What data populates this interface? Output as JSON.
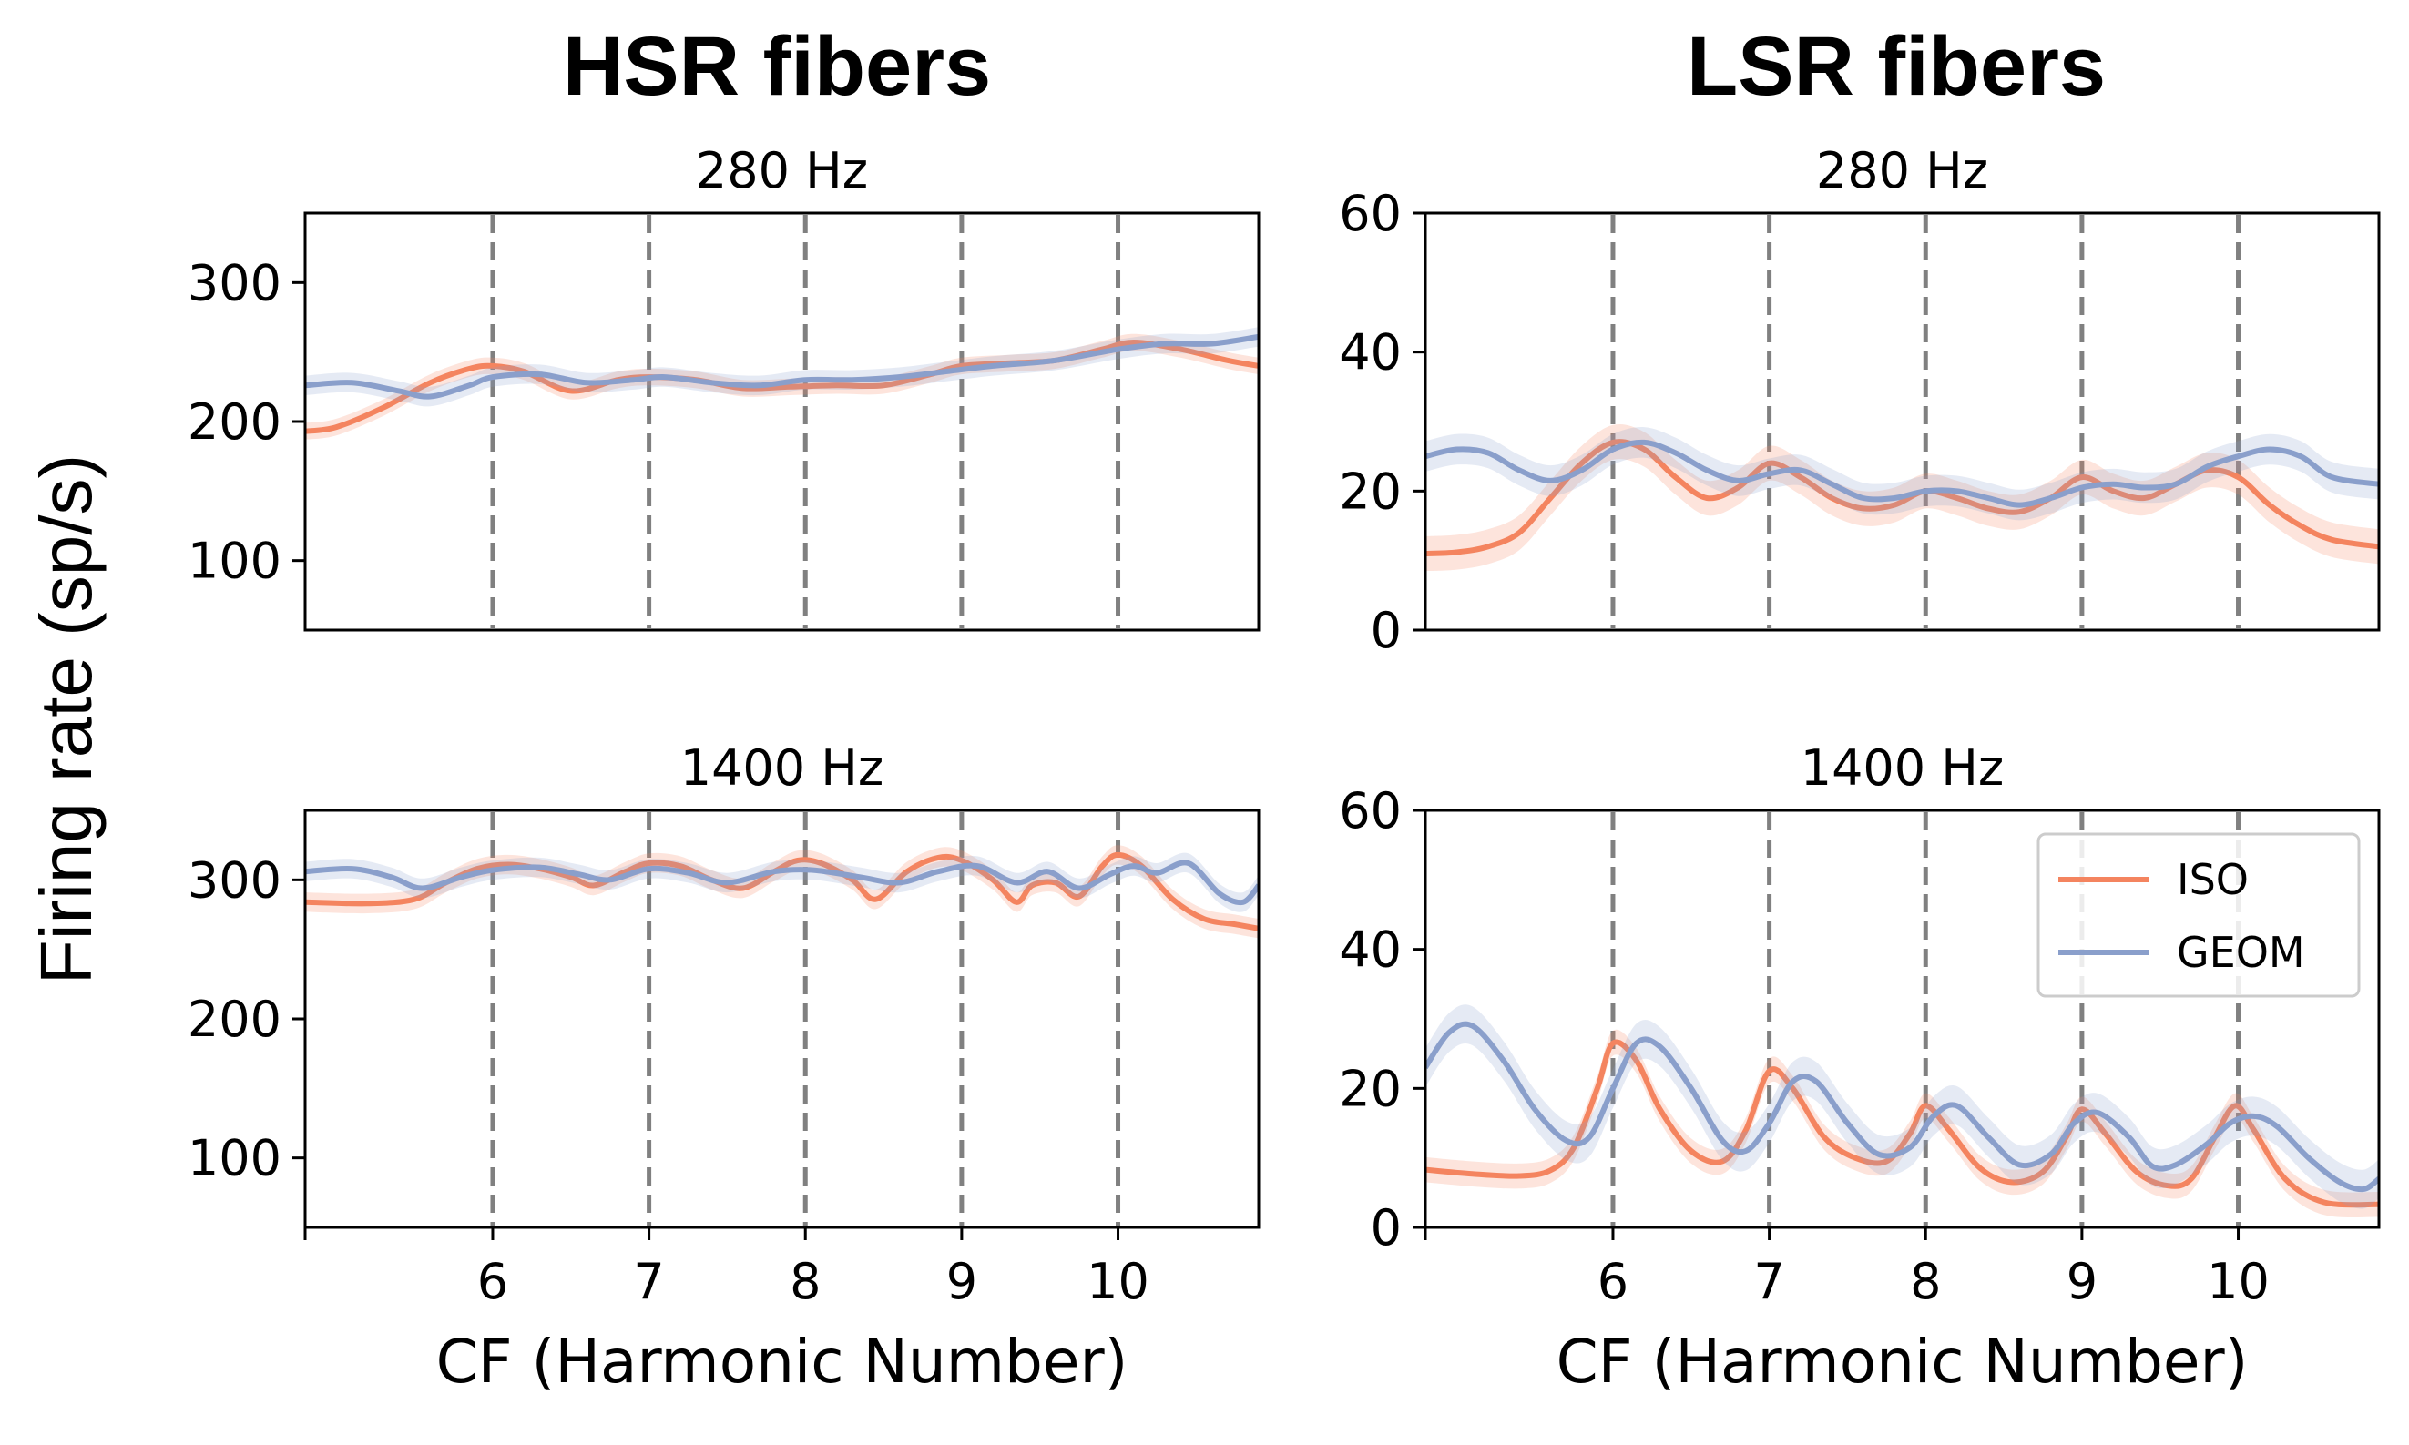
{
  "figure": {
    "ylabel": "Firing rate (sp/s)",
    "columns": [
      "HSR fibers",
      "LSR fibers"
    ]
  },
  "colors": {
    "ISO": "#F4845F",
    "GEOM": "#8A9FCB",
    "harmonic_lines": "#808080"
  },
  "chart_data": [
    {
      "id": "hsr-280",
      "type": "line",
      "column": "HSR fibers",
      "title": "280 Hz",
      "xlabel": "",
      "xlim": [
        4.8,
        10.9
      ],
      "ylim": [
        50,
        350
      ],
      "yticks": [
        100,
        200,
        300
      ],
      "xticks": [],
      "harmonics": [
        6,
        7,
        8,
        9,
        10
      ],
      "series": [
        {
          "name": "ISO",
          "points": [
            [
              4.8,
              193
            ],
            [
              5.0,
              196
            ],
            [
              5.3,
              210
            ],
            [
              5.6,
              228
            ],
            [
              5.85,
              238
            ],
            [
              6.0,
              240
            ],
            [
              6.2,
              236
            ],
            [
              6.5,
              222
            ],
            [
              6.8,
              230
            ],
            [
              7.0,
              232
            ],
            [
              7.3,
              230
            ],
            [
              7.6,
              224
            ],
            [
              7.9,
              225
            ],
            [
              8.2,
              226
            ],
            [
              8.5,
              226
            ],
            [
              8.8,
              234
            ],
            [
              9.0,
              240
            ],
            [
              9.3,
              242
            ],
            [
              9.6,
              244
            ],
            [
              9.9,
              252
            ],
            [
              10.1,
              257
            ],
            [
              10.4,
              252
            ],
            [
              10.7,
              244
            ],
            [
              10.9,
              240
            ]
          ],
          "band": 6
        },
        {
          "name": "GEOM",
          "points": [
            [
              4.8,
              226
            ],
            [
              5.1,
              228
            ],
            [
              5.4,
              222
            ],
            [
              5.6,
              218
            ],
            [
              5.85,
              226
            ],
            [
              6.0,
              232
            ],
            [
              6.3,
              234
            ],
            [
              6.6,
              228
            ],
            [
              6.9,
              230
            ],
            [
              7.1,
              232
            ],
            [
              7.4,
              228
            ],
            [
              7.7,
              226
            ],
            [
              8.0,
              230
            ],
            [
              8.3,
              230
            ],
            [
              8.6,
              232
            ],
            [
              8.9,
              236
            ],
            [
              9.2,
              240
            ],
            [
              9.6,
              244
            ],
            [
              10.0,
              252
            ],
            [
              10.3,
              256
            ],
            [
              10.6,
              256
            ],
            [
              10.9,
              261
            ]
          ],
          "band": 7
        }
      ]
    },
    {
      "id": "lsr-280",
      "type": "line",
      "column": "LSR fibers",
      "title": "280 Hz",
      "xlabel": "",
      "xlim": [
        4.8,
        10.9
      ],
      "ylim": [
        0,
        60
      ],
      "yticks": [
        0,
        20,
        40,
        60
      ],
      "xticks": [],
      "harmonics": [
        6,
        7,
        8,
        9,
        10
      ],
      "series": [
        {
          "name": "ISO",
          "points": [
            [
              4.8,
              11
            ],
            [
              5.0,
              11.2
            ],
            [
              5.2,
              12
            ],
            [
              5.4,
              14
            ],
            [
              5.6,
              19
            ],
            [
              5.8,
              24
            ],
            [
              6.0,
              27
            ],
            [
              6.2,
              26
            ],
            [
              6.4,
              22
            ],
            [
              6.6,
              19
            ],
            [
              6.8,
              20.5
            ],
            [
              7.0,
              24
            ],
            [
              7.2,
              22
            ],
            [
              7.4,
              19
            ],
            [
              7.6,
              17.5
            ],
            [
              7.8,
              18
            ],
            [
              8.0,
              20
            ],
            [
              8.2,
              19
            ],
            [
              8.4,
              17.5
            ],
            [
              8.6,
              17
            ],
            [
              8.8,
              19
            ],
            [
              9.0,
              22
            ],
            [
              9.2,
              20
            ],
            [
              9.4,
              19
            ],
            [
              9.6,
              21
            ],
            [
              9.8,
              23
            ],
            [
              10.0,
              22
            ],
            [
              10.2,
              18
            ],
            [
              10.4,
              15
            ],
            [
              10.6,
              13
            ],
            [
              10.9,
              12
            ]
          ],
          "band": 2.5
        },
        {
          "name": "GEOM",
          "points": [
            [
              4.8,
              25
            ],
            [
              5.0,
              26
            ],
            [
              5.2,
              25.5
            ],
            [
              5.4,
              23
            ],
            [
              5.6,
              21.5
            ],
            [
              5.8,
              23
            ],
            [
              6.0,
              26
            ],
            [
              6.2,
              27
            ],
            [
              6.4,
              25.5
            ],
            [
              6.6,
              23
            ],
            [
              6.8,
              21.5
            ],
            [
              7.0,
              22.5
            ],
            [
              7.2,
              23
            ],
            [
              7.4,
              21
            ],
            [
              7.6,
              19
            ],
            [
              7.8,
              19
            ],
            [
              8.0,
              20
            ],
            [
              8.2,
              20
            ],
            [
              8.4,
              19
            ],
            [
              8.6,
              18
            ],
            [
              8.8,
              19
            ],
            [
              9.0,
              20.5
            ],
            [
              9.2,
              21
            ],
            [
              9.4,
              20.5
            ],
            [
              9.6,
              21
            ],
            [
              9.8,
              23.5
            ],
            [
              10.0,
              25
            ],
            [
              10.2,
              26
            ],
            [
              10.4,
              25
            ],
            [
              10.6,
              22
            ],
            [
              10.9,
              21
            ]
          ],
          "band": 2.2
        }
      ]
    },
    {
      "id": "hsr-1400",
      "type": "line",
      "column": "HSR fibers",
      "title": "1400 Hz",
      "xlabel": "CF (Harmonic Number)",
      "xlim": [
        4.8,
        10.9
      ],
      "ylim": [
        50,
        350
      ],
      "yticks": [
        100,
        200,
        300
      ],
      "xticks": [
        6,
        7,
        8,
        9,
        10
      ],
      "harmonics": [
        6,
        7,
        8,
        9,
        10
      ],
      "series": [
        {
          "name": "ISO",
          "points": [
            [
              4.8,
              284
            ],
            [
              5.2,
              283
            ],
            [
              5.5,
              286
            ],
            [
              5.7,
              298
            ],
            [
              5.9,
              308
            ],
            [
              6.1,
              311
            ],
            [
              6.3,
              308
            ],
            [
              6.5,
              302
            ],
            [
              6.65,
              296
            ],
            [
              6.85,
              306
            ],
            [
              7.0,
              312
            ],
            [
              7.2,
              310
            ],
            [
              7.4,
              300
            ],
            [
              7.6,
              294
            ],
            [
              7.8,
              306
            ],
            [
              7.95,
              314
            ],
            [
              8.1,
              312
            ],
            [
              8.3,
              300
            ],
            [
              8.45,
              286
            ],
            [
              8.65,
              306
            ],
            [
              8.85,
              316
            ],
            [
              9.0,
              314
            ],
            [
              9.2,
              300
            ],
            [
              9.35,
              284
            ],
            [
              9.45,
              296
            ],
            [
              9.6,
              298
            ],
            [
              9.75,
              288
            ],
            [
              9.9,
              310
            ],
            [
              10.0,
              318
            ],
            [
              10.15,
              310
            ],
            [
              10.35,
              286
            ],
            [
              10.55,
              272
            ],
            [
              10.75,
              268
            ],
            [
              10.9,
              265
            ]
          ],
          "band": 7
        },
        {
          "name": "GEOM",
          "points": [
            [
              4.8,
              306
            ],
            [
              5.1,
              308
            ],
            [
              5.35,
              302
            ],
            [
              5.55,
              294
            ],
            [
              5.8,
              302
            ],
            [
              6.0,
              307
            ],
            [
              6.3,
              309
            ],
            [
              6.55,
              304
            ],
            [
              6.75,
              300
            ],
            [
              7.0,
              308
            ],
            [
              7.25,
              305
            ],
            [
              7.5,
              298
            ],
            [
              7.8,
              306
            ],
            [
              8.05,
              307
            ],
            [
              8.35,
              302
            ],
            [
              8.6,
              298
            ],
            [
              8.85,
              306
            ],
            [
              9.1,
              310
            ],
            [
              9.35,
              298
            ],
            [
              9.55,
              306
            ],
            [
              9.75,
              294
            ],
            [
              9.95,
              304
            ],
            [
              10.1,
              310
            ],
            [
              10.25,
              305
            ],
            [
              10.45,
              312
            ],
            [
              10.65,
              290
            ],
            [
              10.8,
              284
            ],
            [
              10.9,
              296
            ]
          ],
          "band": 7
        }
      ]
    },
    {
      "id": "lsr-1400",
      "type": "line",
      "column": "LSR fibers",
      "title": "1400 Hz",
      "xlabel": "CF (Harmonic Number)",
      "xlim": [
        4.8,
        10.9
      ],
      "ylim": [
        0,
        60
      ],
      "yticks": [
        0,
        20,
        40,
        60
      ],
      "xticks": [
        6,
        7,
        8,
        9,
        10
      ],
      "harmonics": [
        6,
        7,
        8,
        9,
        10
      ],
      "series": [
        {
          "name": "ISO",
          "points": [
            [
              4.8,
              8.3
            ],
            [
              5.1,
              7.7
            ],
            [
              5.4,
              7.4
            ],
            [
              5.6,
              8.2
            ],
            [
              5.75,
              11.5
            ],
            [
              5.9,
              20
            ],
            [
              6.0,
              26.5
            ],
            [
              6.15,
              24
            ],
            [
              6.3,
              17
            ],
            [
              6.5,
              11
            ],
            [
              6.7,
              9.5
            ],
            [
              6.85,
              14
            ],
            [
              7.0,
              22.5
            ],
            [
              7.15,
              20
            ],
            [
              7.35,
              13
            ],
            [
              7.55,
              10
            ],
            [
              7.75,
              9.5
            ],
            [
              7.9,
              13.5
            ],
            [
              8.0,
              17.5
            ],
            [
              8.15,
              14
            ],
            [
              8.35,
              8.5
            ],
            [
              8.55,
              6.5
            ],
            [
              8.75,
              8
            ],
            [
              8.9,
              13
            ],
            [
              9.0,
              17
            ],
            [
              9.15,
              13.5
            ],
            [
              9.35,
              8
            ],
            [
              9.55,
              6
            ],
            [
              9.7,
              7
            ],
            [
              9.85,
              13
            ],
            [
              9.98,
              17.5
            ],
            [
              10.1,
              14
            ],
            [
              10.3,
              7
            ],
            [
              10.55,
              3.6
            ],
            [
              10.9,
              3.3
            ]
          ],
          "band": 1.8
        },
        {
          "name": "GEOM",
          "points": [
            [
              4.8,
              23
            ],
            [
              4.95,
              28
            ],
            [
              5.1,
              29
            ],
            [
              5.3,
              24
            ],
            [
              5.5,
              17
            ],
            [
              5.7,
              12.5
            ],
            [
              5.85,
              13
            ],
            [
              6.0,
              20
            ],
            [
              6.15,
              26.5
            ],
            [
              6.3,
              26
            ],
            [
              6.5,
              20
            ],
            [
              6.7,
              12.5
            ],
            [
              6.85,
              11
            ],
            [
              7.0,
              15
            ],
            [
              7.15,
              21
            ],
            [
              7.3,
              21
            ],
            [
              7.5,
              15
            ],
            [
              7.7,
              10.5
            ],
            [
              7.9,
              11.5
            ],
            [
              8.05,
              16
            ],
            [
              8.2,
              17.5
            ],
            [
              8.4,
              13
            ],
            [
              8.6,
              9
            ],
            [
              8.8,
              10.5
            ],
            [
              8.95,
              15
            ],
            [
              9.1,
              16.5
            ],
            [
              9.3,
              13
            ],
            [
              9.45,
              8.8
            ],
            [
              9.6,
              9
            ],
            [
              9.8,
              12
            ],
            [
              9.95,
              15
            ],
            [
              10.1,
              16
            ],
            [
              10.25,
              14.5
            ],
            [
              10.45,
              10
            ],
            [
              10.65,
              6.5
            ],
            [
              10.8,
              5.5
            ],
            [
              10.9,
              7
            ]
          ],
          "band": 2.8
        }
      ]
    }
  ],
  "legend": {
    "location": "upper-right",
    "panel": "lsr-1400",
    "items": [
      "ISO",
      "GEOM"
    ]
  }
}
